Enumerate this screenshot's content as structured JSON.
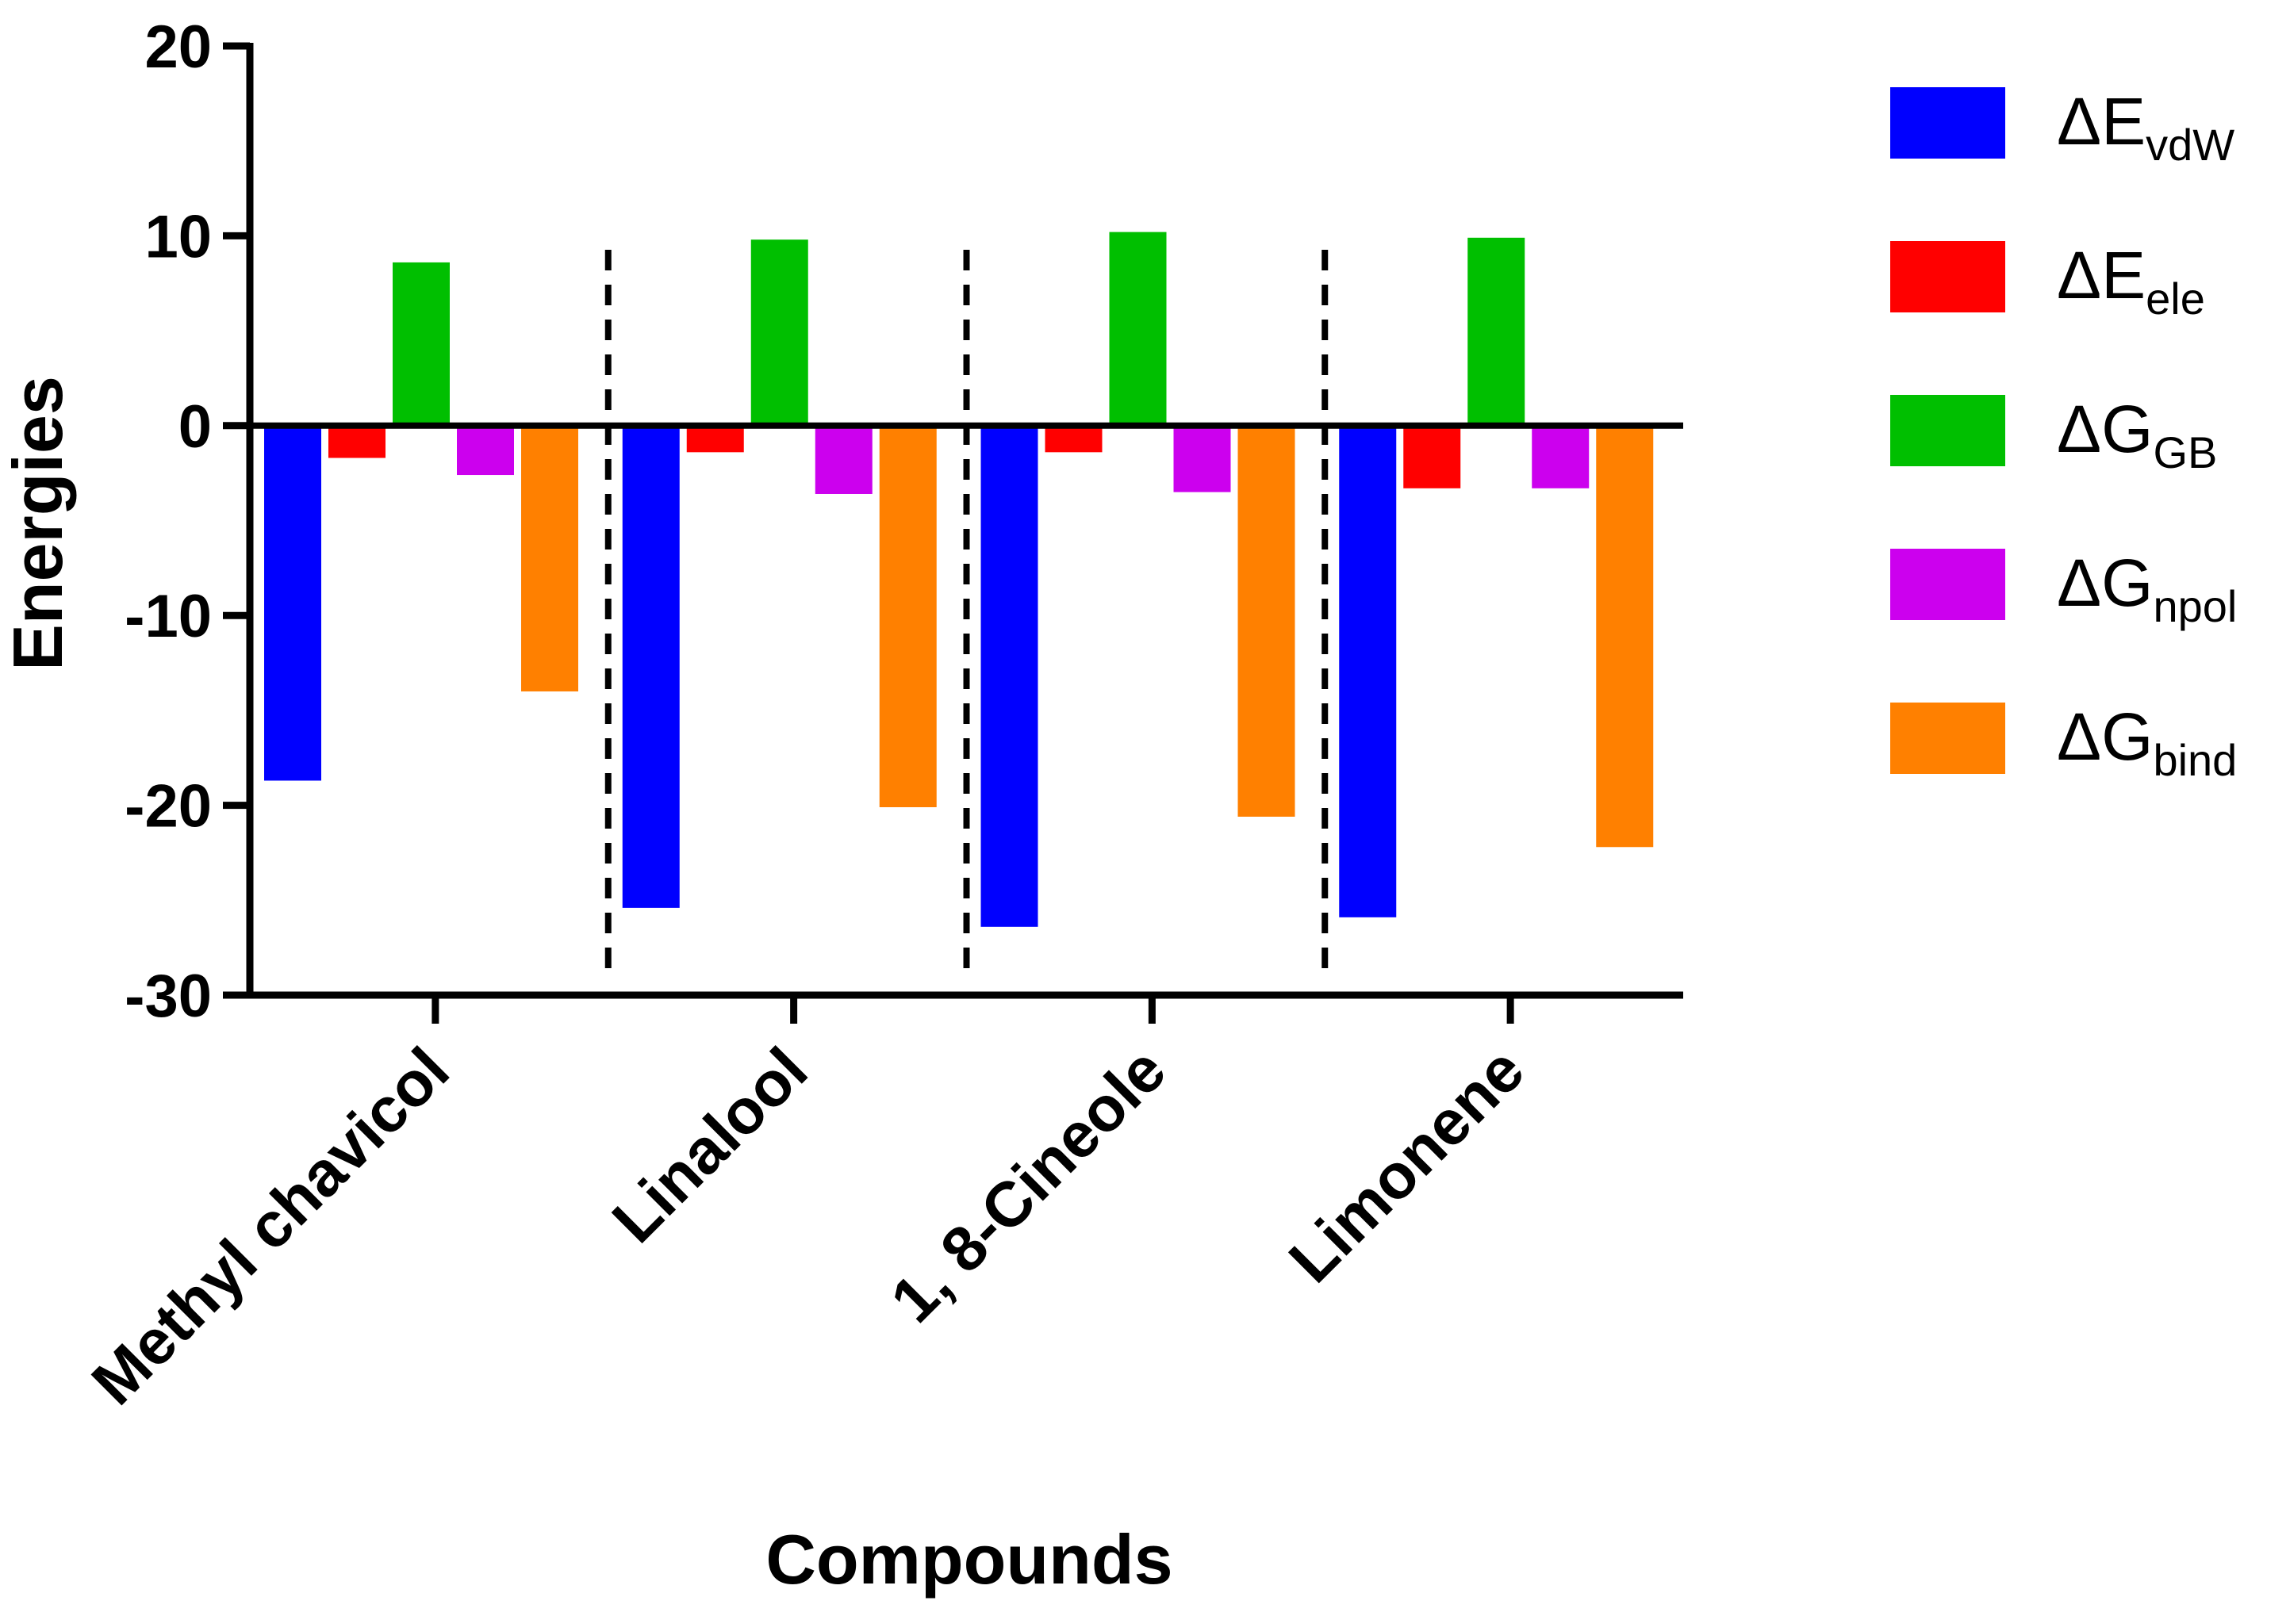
{
  "chart_data": {
    "type": "bar",
    "title": "",
    "xlabel": "Compounds",
    "ylabel": "Energies",
    "ylim": [
      -30,
      20
    ],
    "yticks": [
      "20",
      "10",
      "0",
      "-10",
      "-20",
      "-30"
    ],
    "ytick_values": [
      20,
      10,
      0,
      -10,
      -20,
      -30
    ],
    "categories": [
      "Methyl chavicol",
      "Linalool",
      "1, 8-Cineole",
      "Limonene"
    ],
    "series": [
      {
        "name": "ΔE",
        "sub": "vdW",
        "color": "#0000ff",
        "values": [
          -18.7,
          -25.4,
          -26.4,
          -25.9
        ]
      },
      {
        "name": "ΔE",
        "sub": "ele",
        "color": "#ff0000",
        "values": [
          -1.7,
          -1.4,
          -1.4,
          -3.3
        ]
      },
      {
        "name": "ΔG",
        "sub": "GB",
        "color": "#00bf00",
        "values": [
          8.6,
          9.8,
          10.2,
          9.9
        ]
      },
      {
        "name": "ΔG",
        "sub": "npol",
        "color": "#cc00ee",
        "values": [
          -2.6,
          -3.6,
          -3.5,
          -3.3
        ]
      },
      {
        "name": "ΔG",
        "sub": "bind",
        "color": "#ff8000",
        "values": [
          -14.0,
          -20.1,
          -20.6,
          -22.2
        ]
      }
    ],
    "grid": false,
    "legend_position": "right",
    "group_separators": "dashed"
  }
}
